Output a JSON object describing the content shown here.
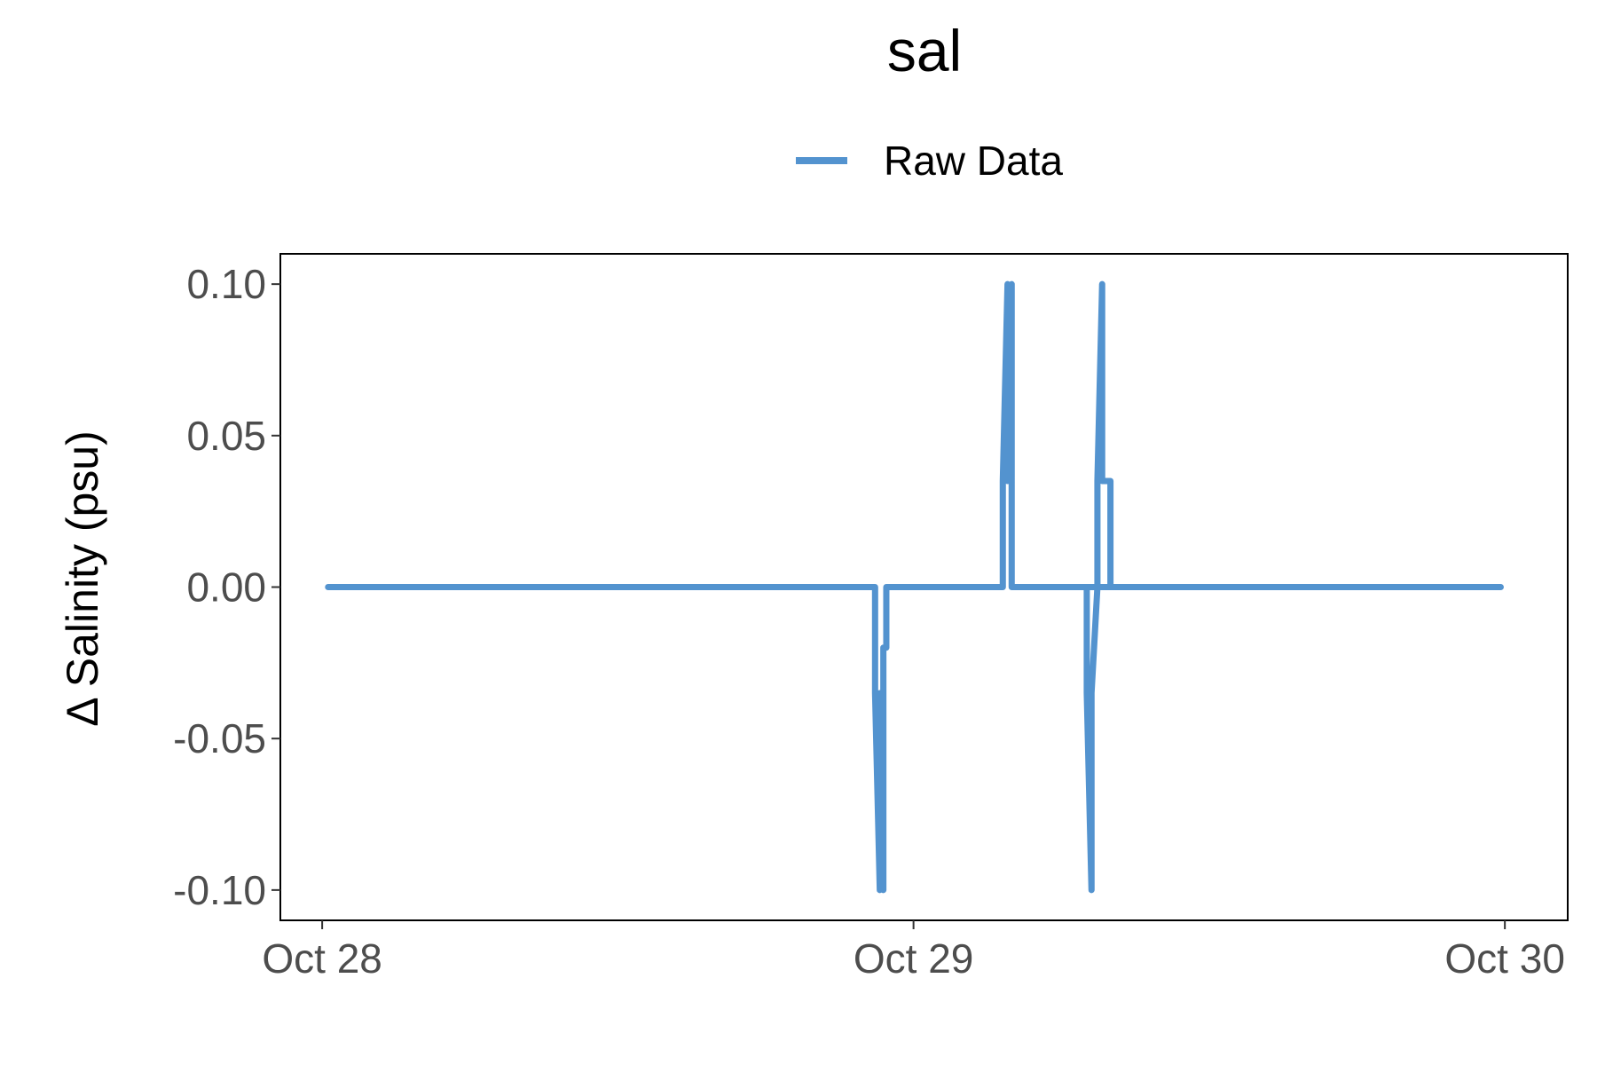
{
  "chart_data": {
    "type": "line",
    "title": "sal",
    "xlabel": "",
    "ylabel": "Δ Salinity (psu)",
    "legend": {
      "position": "top",
      "entries": [
        {
          "name": "Raw Data",
          "color": "#5393cf"
        }
      ]
    },
    "x_ticks": [
      {
        "label": "Oct 28",
        "value": 0
      },
      {
        "label": "Oct 29",
        "value": 1
      },
      {
        "label": "Oct 30",
        "value": 2
      }
    ],
    "y_ticks": [
      "0.10",
      "0.05",
      "0.00",
      "-0.05",
      "-0.10"
    ],
    "y_tick_values": [
      0.1,
      0.05,
      0.0,
      -0.05,
      -0.1
    ],
    "xlim": [
      -0.0707,
      2.1063
    ],
    "ylim": [
      -0.11,
      0.11
    ],
    "grid": false,
    "series": [
      {
        "name": "Raw Data",
        "color": "#5393cf",
        "x": [
          0.01,
          0.935,
          0.935,
          0.943,
          0.943,
          0.949,
          0.949,
          0.954,
          0.954,
          1.151,
          1.151,
          1.159,
          1.159,
          1.166,
          1.166,
          1.176,
          1.176,
          1.386,
          1.386,
          1.293,
          1.293,
          1.301,
          1.301,
          1.311,
          1.311,
          1.319,
          1.319,
          1.333,
          1.333,
          1.993
        ],
        "y": [
          0.0,
          0.0,
          -0.035,
          -0.1,
          -0.035,
          -0.1,
          -0.02,
          -0.02,
          0.0,
          0.0,
          0.035,
          0.1,
          0.035,
          0.1,
          0.0,
          0.0,
          0.0,
          0.0,
          0.0,
          0.0,
          -0.035,
          -0.1,
          -0.035,
          0.0,
          0.035,
          0.1,
          0.035,
          0.035,
          0.0,
          0.0
        ]
      }
    ]
  }
}
